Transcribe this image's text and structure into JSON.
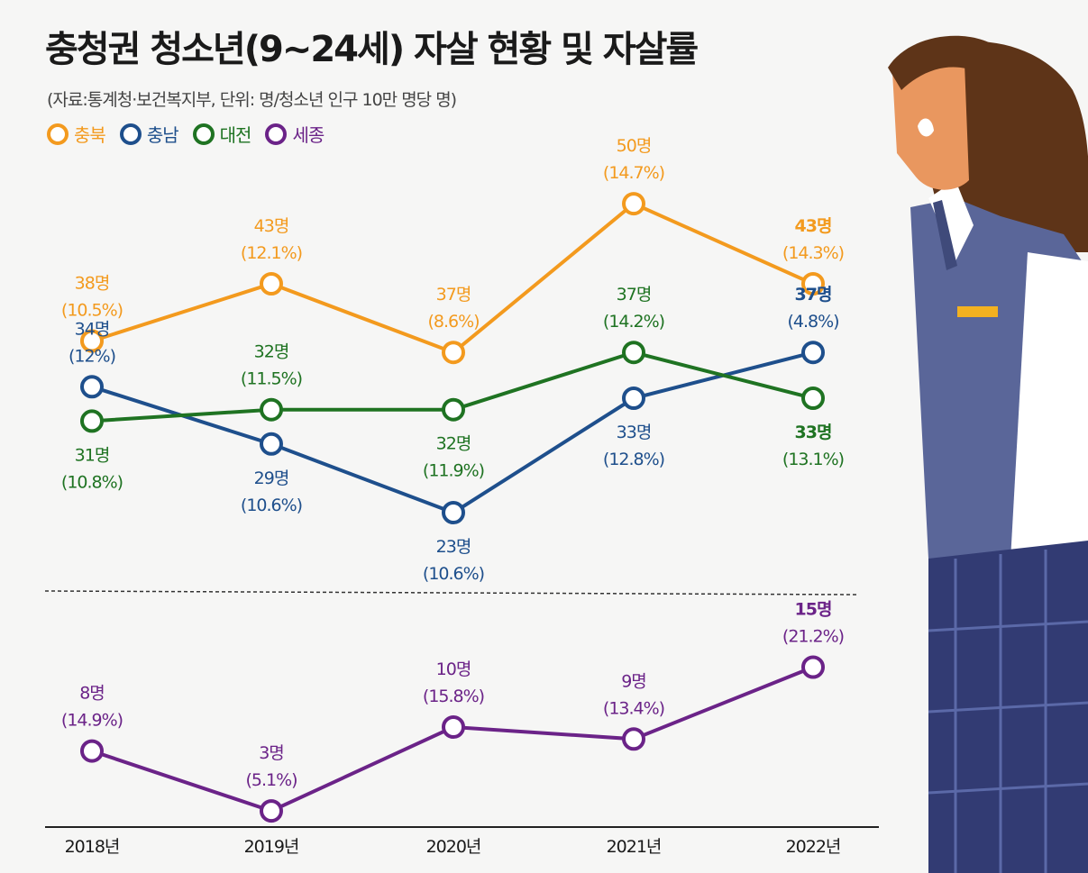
{
  "title": "충청권 청소년(9~24세) 자살 현황 및 자살률",
  "source": "(자료:통계청·보건복지부, 단위: 명/청소년 인구 10만 명당 명)",
  "chart_data": {
    "type": "line",
    "title": "충청권 청소년(9~24세) 자살 현황 및 자살률",
    "subtitle": "(자료:통계청·보건복지부, 단위: 명/청소년 인구 10만 명당 명)",
    "categories": [
      "2018년",
      "2019년",
      "2020년",
      "2021년",
      "2022년"
    ],
    "series": [
      {
        "name": "충북",
        "color": "#f39a1e",
        "values": [
          38,
          43,
          37,
          50,
          43
        ],
        "labels": [
          "38명",
          "43명",
          "37명",
          "50명",
          "43명"
        ],
        "rates": [
          "(10.5%)",
          "(12.1%)",
          "(8.6%)",
          "(14.7%)",
          "(14.3%)"
        ]
      },
      {
        "name": "충남",
        "color": "#1e4f8c",
        "values": [
          34,
          29,
          23,
          33,
          37
        ],
        "labels": [
          "34명",
          "29명",
          "23명",
          "33명",
          "37명"
        ],
        "rates": [
          "(12%)",
          "(10.6%)",
          "(10.6%)",
          "(12.8%)",
          "(4.8%)"
        ]
      },
      {
        "name": "대전",
        "color": "#1f7322",
        "values": [
          31,
          32,
          32,
          37,
          33
        ],
        "labels": [
          "31명",
          "32명",
          "32명",
          "37명",
          "33명"
        ],
        "rates": [
          "(10.8%)",
          "(11.5%)",
          "(11.9%)",
          "(14.2%)",
          "(13.1%)"
        ]
      },
      {
        "name": "세종",
        "color": "#6b2388",
        "values": [
          8,
          3,
          10,
          9,
          15
        ],
        "labels": [
          "8명",
          "3명",
          "10명",
          "9명",
          "15명"
        ],
        "rates": [
          "(14.9%)",
          "(5.1%)",
          "(15.8%)",
          "(13.4%)",
          "(21.2%)"
        ]
      }
    ]
  }
}
